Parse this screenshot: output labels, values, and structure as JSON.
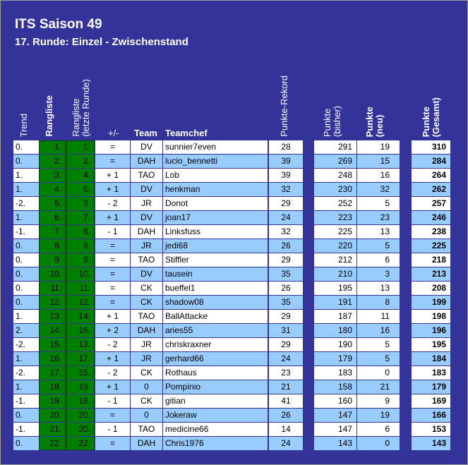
{
  "title": "ITS Saison 49",
  "subtitle": "17. Runde: Einzel - Zwischenstand",
  "headers": {
    "trend": "Trend",
    "rangliste": "Rangliste",
    "rangliste_letzte": [
      "Rangliste",
      "(letzte Runde)"
    ],
    "diff": "+/-",
    "team": "Team",
    "teamchef": "Teamchef",
    "rekord": "Punkte-Rekord",
    "bisher": [
      "Punkte",
      "(bisher)"
    ],
    "neu": [
      "Punkte",
      "(neu)"
    ],
    "gesamt": [
      "Punkte",
      "(Gesamt)"
    ]
  },
  "colors": {
    "background": "#333399",
    "row_white": "#ffffff",
    "row_blue": "#99ccff",
    "rank_green": "#008000"
  },
  "rows": [
    {
      "trend": "0.",
      "rank": "1.",
      "last": "1.",
      "diff": "=",
      "team": "DV",
      "chef": "sunnier7even",
      "rekord": "28",
      "bisher": "291",
      "neu": "19",
      "gesamt": "310"
    },
    {
      "trend": "0.",
      "rank": "2.",
      "last": "2.",
      "diff": "=",
      "team": "DAH",
      "chef": "lucio_bennetti",
      "rekord": "39",
      "bisher": "269",
      "neu": "15",
      "gesamt": "284"
    },
    {
      "trend": "1.",
      "rank": "3.",
      "last": "4.",
      "diff": "+ 1",
      "team": "TAO",
      "chef": "Lob",
      "rekord": "39",
      "bisher": "248",
      "neu": "16",
      "gesamt": "264"
    },
    {
      "trend": "1.",
      "rank": "4.",
      "last": "5.",
      "diff": "+ 1",
      "team": "DV",
      "chef": "henkman",
      "rekord": "32",
      "bisher": "230",
      "neu": "32",
      "gesamt": "262"
    },
    {
      "trend": "-2.",
      "rank": "5.",
      "last": "3.",
      "diff": "- 2",
      "team": "JR",
      "chef": "Donot",
      "rekord": "29",
      "bisher": "252",
      "neu": "5",
      "gesamt": "257"
    },
    {
      "trend": "1.",
      "rank": "6.",
      "last": "7.",
      "diff": "+ 1",
      "team": "DV",
      "chef": "joan17",
      "rekord": "24",
      "bisher": "223",
      "neu": "23",
      "gesamt": "246"
    },
    {
      "trend": "-1.",
      "rank": "7.",
      "last": "6.",
      "diff": "- 1",
      "team": "DAH",
      "chef": "Linksfuss",
      "rekord": "32",
      "bisher": "225",
      "neu": "13",
      "gesamt": "238"
    },
    {
      "trend": "0.",
      "rank": "8.",
      "last": "8.",
      "diff": "=",
      "team": "JR",
      "chef": "jedi68",
      "rekord": "26",
      "bisher": "220",
      "neu": "5",
      "gesamt": "225"
    },
    {
      "trend": "0.",
      "rank": "9.",
      "last": "9.",
      "diff": "=",
      "team": "TAO",
      "chef": "Stiffler",
      "rekord": "29",
      "bisher": "212",
      "neu": "6",
      "gesamt": "218"
    },
    {
      "trend": "0.",
      "rank": "10.",
      "last": "10.",
      "diff": "=",
      "team": "DV",
      "chef": "tausein",
      "rekord": "35",
      "bisher": "210",
      "neu": "3",
      "gesamt": "213"
    },
    {
      "trend": "0.",
      "rank": "11.",
      "last": "11.",
      "diff": "=",
      "team": "CK",
      "chef": "bueffel1",
      "rekord": "26",
      "bisher": "195",
      "neu": "13",
      "gesamt": "208"
    },
    {
      "trend": "0.",
      "rank": "12.",
      "last": "12.",
      "diff": "=",
      "team": "CK",
      "chef": "shadow08",
      "rekord": "35",
      "bisher": "191",
      "neu": "8",
      "gesamt": "199"
    },
    {
      "trend": "1.",
      "rank": "13.",
      "last": "14.",
      "diff": "+ 1",
      "team": "TAO",
      "chef": "BallAttacke",
      "rekord": "29",
      "bisher": "187",
      "neu": "11",
      "gesamt": "198"
    },
    {
      "trend": "2.",
      "rank": "14.",
      "last": "16.",
      "diff": "+ 2",
      "team": "DAH",
      "chef": "aries55",
      "rekord": "31",
      "bisher": "180",
      "neu": "16",
      "gesamt": "196"
    },
    {
      "trend": "-2.",
      "rank": "15.",
      "last": "13.",
      "diff": "- 2",
      "team": "JR",
      "chef": "chriskraxner",
      "rekord": "29",
      "bisher": "190",
      "neu": "5",
      "gesamt": "195"
    },
    {
      "trend": "1.",
      "rank": "16.",
      "last": "17.",
      "diff": "+ 1",
      "team": "JR",
      "chef": "gerhard66",
      "rekord": "24",
      "bisher": "179",
      "neu": "5",
      "gesamt": "184"
    },
    {
      "trend": "-2.",
      "rank": "17.",
      "last": "15.",
      "diff": "- 2",
      "team": "CK",
      "chef": "Rothaus",
      "rekord": "23",
      "bisher": "183",
      "neu": "0",
      "gesamt": "183"
    },
    {
      "trend": "1.",
      "rank": "18.",
      "last": "19.",
      "diff": "+ 1",
      "team": "0",
      "chef": "Pompinio",
      "rekord": "21",
      "bisher": "158",
      "neu": "21",
      "gesamt": "179"
    },
    {
      "trend": "-1.",
      "rank": "19.",
      "last": "18.",
      "diff": "- 1",
      "team": "CK",
      "chef": "gitian",
      "rekord": "41",
      "bisher": "160",
      "neu": "9",
      "gesamt": "169"
    },
    {
      "trend": "0.",
      "rank": "20.",
      "last": "20.",
      "diff": "=",
      "team": "0",
      "chef": "Jokeraw",
      "rekord": "26",
      "bisher": "147",
      "neu": "19",
      "gesamt": "166"
    },
    {
      "trend": "-1.",
      "rank": "21.",
      "last": "20.",
      "diff": "- 1",
      "team": "TAO",
      "chef": "medicine66",
      "rekord": "14",
      "bisher": "147",
      "neu": "6",
      "gesamt": "153"
    },
    {
      "trend": "0.",
      "rank": "22.",
      "last": "22.",
      "diff": "=",
      "team": "DAH",
      "chef": "Chris1976",
      "rekord": "24",
      "bisher": "143",
      "neu": "0",
      "gesamt": "143"
    }
  ]
}
